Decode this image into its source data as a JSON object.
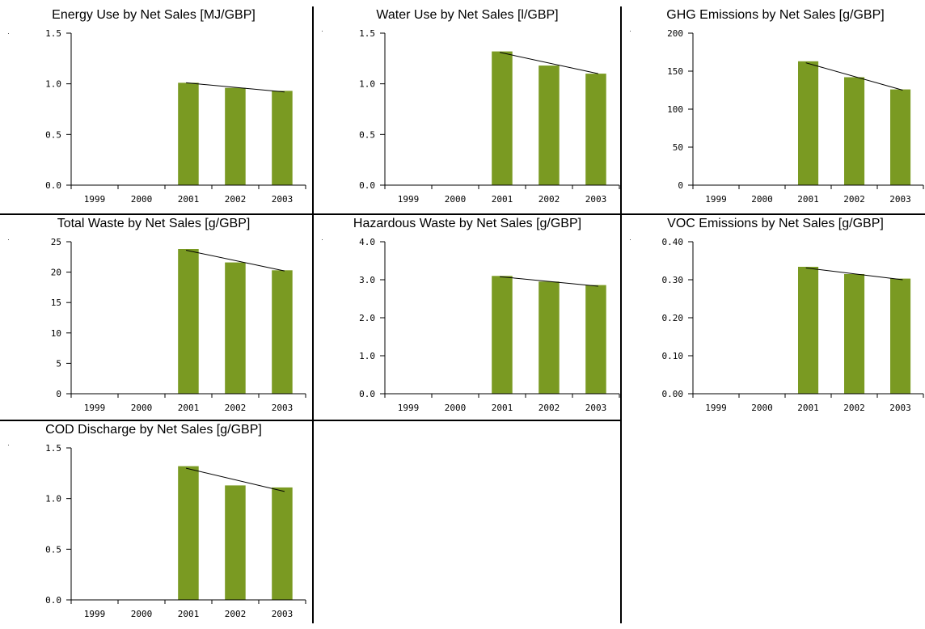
{
  "colors": {
    "bar": "#7a9a22",
    "axis": "#000000",
    "trend": "#000000"
  },
  "categories": [
    "1999",
    "2000",
    "2001",
    "2002",
    "2003"
  ],
  "chart_data": [
    {
      "type": "bar",
      "title": "Energy Use by Net Sales [MJ/GBP]",
      "categories": [
        "1999",
        "2000",
        "2001",
        "2002",
        "2003"
      ],
      "values": [
        null,
        null,
        1.01,
        0.96,
        0.93
      ],
      "trend": [
        1.01,
        0.92
      ],
      "ylim": [
        0,
        1.5
      ],
      "yticks": [
        0,
        0.5,
        1.0,
        1.5
      ],
      "ytick_labels": [
        "0.0",
        "0.5",
        "1.0",
        "1.5"
      ]
    },
    {
      "type": "bar",
      "title": "Water Use by Net Sales [l/GBP]",
      "categories": [
        "1999",
        "2000",
        "2001",
        "2002",
        "2003"
      ],
      "values": [
        null,
        null,
        1.32,
        1.18,
        1.1
      ],
      "trend": [
        1.31,
        1.1
      ],
      "ylim": [
        0,
        1.5
      ],
      "yticks": [
        0,
        0.5,
        1.0,
        1.5
      ],
      "ytick_labels": [
        "0.0",
        "0.5",
        "1.0",
        "1.5"
      ]
    },
    {
      "type": "bar",
      "title": "GHG Emissions by Net Sales [g/GBP]",
      "categories": [
        "1999",
        "2000",
        "2001",
        "2002",
        "2003"
      ],
      "values": [
        null,
        null,
        163,
        142,
        126
      ],
      "trend": [
        161,
        125
      ],
      "ylim": [
        0,
        200
      ],
      "yticks": [
        0,
        50,
        100,
        150,
        200
      ],
      "ytick_labels": [
        "0",
        "50",
        "100",
        "150",
        "200"
      ]
    },
    {
      "type": "bar",
      "title": "Total Waste by Net Sales [g/GBP]",
      "categories": [
        "1999",
        "2000",
        "2001",
        "2002",
        "2003"
      ],
      "values": [
        null,
        null,
        23.8,
        21.6,
        20.3
      ],
      "trend": [
        23.6,
        20.2
      ],
      "ylim": [
        0,
        25
      ],
      "yticks": [
        0,
        5,
        10,
        15,
        20,
        25
      ],
      "ytick_labels": [
        "0",
        "5",
        "10",
        "15",
        "20",
        "25"
      ]
    },
    {
      "type": "bar",
      "title": "Hazardous Waste by Net Sales [g/GBP]",
      "categories": [
        "1999",
        "2000",
        "2001",
        "2002",
        "2003"
      ],
      "values": [
        null,
        null,
        3.1,
        2.95,
        2.86
      ],
      "trend": [
        3.08,
        2.83
      ],
      "ylim": [
        0,
        4.0
      ],
      "yticks": [
        0,
        1.0,
        2.0,
        3.0,
        4.0
      ],
      "ytick_labels": [
        "0.0",
        "1.0",
        "2.0",
        "3.0",
        "4.0"
      ]
    },
    {
      "type": "bar",
      "title": "VOC Emissions by Net Sales [g/GBP]",
      "categories": [
        "1999",
        "2000",
        "2001",
        "2002",
        "2003"
      ],
      "values": [
        null,
        null,
        0.334,
        0.315,
        0.303
      ],
      "trend": [
        0.331,
        0.3
      ],
      "ylim": [
        0,
        0.4
      ],
      "yticks": [
        0,
        0.1,
        0.2,
        0.3,
        0.4
      ],
      "ytick_labels": [
        "0.00",
        "0.10",
        "0.20",
        "0.30",
        "0.40"
      ]
    },
    {
      "type": "bar",
      "title": "COD Discharge by Net Sales [g/GBP]",
      "categories": [
        "1999",
        "2000",
        "2001",
        "2002",
        "2003"
      ],
      "values": [
        null,
        null,
        1.32,
        1.13,
        1.11
      ],
      "trend": [
        1.3,
        1.07
      ],
      "ylim": [
        0,
        1.5
      ],
      "yticks": [
        0,
        0.5,
        1.0,
        1.5
      ],
      "ytick_labels": [
        "0.0",
        "0.5",
        "1.0",
        "1.5"
      ]
    }
  ]
}
